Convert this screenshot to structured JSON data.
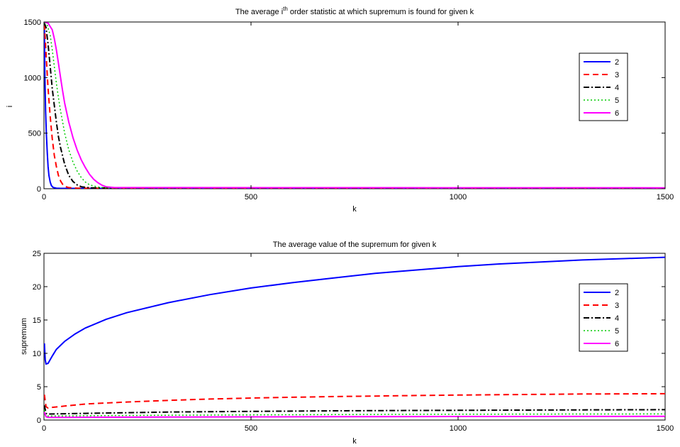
{
  "chart_data": [
    {
      "type": "line",
      "title_prefix": "The average i",
      "title_sup": "th",
      "title_suffix": " order statistic at which supremum is found for given k",
      "xlabel": "k",
      "ylabel": "i",
      "xlim": [
        0,
        1500
      ],
      "ylim": [
        0,
        1500
      ],
      "xticks": [
        0,
        500,
        1000,
        1500
      ],
      "yticks": [
        0,
        500,
        1000,
        1500
      ],
      "grid": false,
      "legend_position": "right",
      "series": [
        {
          "name": "2",
          "color": "#0000ff",
          "dash": "solid",
          "width": 2,
          "points": [
            [
              1,
              1450
            ],
            [
              2,
              1050
            ],
            [
              4,
              700
            ],
            [
              6,
              480
            ],
            [
              8,
              320
            ],
            [
              10,
              200
            ],
            [
              12,
              120
            ],
            [
              15,
              60
            ],
            [
              18,
              28
            ],
            [
              22,
              12
            ],
            [
              30,
              5
            ],
            [
              40,
              3
            ],
            [
              100,
              3
            ],
            [
              1500,
              3
            ]
          ]
        },
        {
          "name": "3",
          "color": "#ff0000",
          "dash": "dashed",
          "width": 2,
          "points": [
            [
              1,
              1480
            ],
            [
              3,
              1350
            ],
            [
              6,
              1150
            ],
            [
              10,
              900
            ],
            [
              15,
              650
            ],
            [
              20,
              450
            ],
            [
              25,
              300
            ],
            [
              30,
              200
            ],
            [
              35,
              120
            ],
            [
              40,
              70
            ],
            [
              45,
              40
            ],
            [
              50,
              22
            ],
            [
              60,
              10
            ],
            [
              80,
              5
            ],
            [
              1500,
              5
            ]
          ]
        },
        {
          "name": "4",
          "color": "#000000",
          "dash": "dashdot",
          "width": 2,
          "points": [
            [
              1,
              1490
            ],
            [
              5,
              1450
            ],
            [
              10,
              1300
            ],
            [
              15,
              1100
            ],
            [
              20,
              900
            ],
            [
              25,
              750
            ],
            [
              30,
              600
            ],
            [
              35,
              470
            ],
            [
              40,
              370
            ],
            [
              50,
              220
            ],
            [
              60,
              120
            ],
            [
              70,
              65
            ],
            [
              80,
              35
            ],
            [
              90,
              18
            ],
            [
              110,
              8
            ],
            [
              1500,
              6
            ]
          ]
        },
        {
          "name": "5",
          "color": "#00cc00",
          "dash": "dotted",
          "width": 1.5,
          "points": [
            [
              1,
              1495
            ],
            [
              8,
              1470
            ],
            [
              15,
              1380
            ],
            [
              20,
              1250
            ],
            [
              25,
              1100
            ],
            [
              30,
              950
            ],
            [
              35,
              820
            ],
            [
              40,
              700
            ],
            [
              50,
              500
            ],
            [
              60,
              350
            ],
            [
              70,
              240
            ],
            [
              80,
              160
            ],
            [
              90,
              100
            ],
            [
              100,
              60
            ],
            [
              110,
              35
            ],
            [
              130,
              15
            ],
            [
              150,
              8
            ],
            [
              1500,
              7
            ]
          ]
        },
        {
          "name": "6",
          "color": "#ff00ff",
          "dash": "solid",
          "width": 2,
          "points": [
            [
              1,
              1500
            ],
            [
              10,
              1490
            ],
            [
              20,
              1430
            ],
            [
              25,
              1350
            ],
            [
              30,
              1250
            ],
            [
              35,
              1130
            ],
            [
              40,
              1000
            ],
            [
              45,
              880
            ],
            [
              50,
              770
            ],
            [
              60,
              600
            ],
            [
              70,
              460
            ],
            [
              80,
              350
            ],
            [
              90,
              260
            ],
            [
              100,
              190
            ],
            [
              110,
              130
            ],
            [
              120,
              85
            ],
            [
              130,
              55
            ],
            [
              140,
              32
            ],
            [
              150,
              18
            ],
            [
              170,
              10
            ],
            [
              1500,
              8
            ]
          ]
        }
      ]
    },
    {
      "type": "line",
      "title": "The average value of the supremum for given k",
      "xlabel": "k",
      "ylabel": "supremum",
      "xlim": [
        0,
        1500
      ],
      "ylim": [
        0,
        25
      ],
      "xticks": [
        0,
        500,
        1000,
        1500
      ],
      "yticks": [
        0,
        5,
        10,
        15,
        20,
        25
      ],
      "grid": false,
      "legend_position": "right",
      "series": [
        {
          "name": "2",
          "color": "#0000ff",
          "dash": "solid",
          "width": 2,
          "points": [
            [
              1,
              11.5
            ],
            [
              3,
              9
            ],
            [
              5,
              8.4
            ],
            [
              10,
              8.5
            ],
            [
              20,
              9.6
            ],
            [
              30,
              10.6
            ],
            [
              50,
              11.8
            ],
            [
              75,
              12.9
            ],
            [
              100,
              13.8
            ],
            [
              150,
              15.1
            ],
            [
              200,
              16.1
            ],
            [
              300,
              17.6
            ],
            [
              400,
              18.8
            ],
            [
              500,
              19.8
            ],
            [
              600,
              20.6
            ],
            [
              700,
              21.3
            ],
            [
              800,
              22.0
            ],
            [
              900,
              22.5
            ],
            [
              1000,
              23.0
            ],
            [
              1100,
              23.4
            ],
            [
              1200,
              23.7
            ],
            [
              1300,
              24.0
            ],
            [
              1400,
              24.2
            ],
            [
              1500,
              24.4
            ]
          ]
        },
        {
          "name": "3",
          "color": "#ff0000",
          "dash": "dashed",
          "width": 2,
          "points": [
            [
              1,
              3.8
            ],
            [
              5,
              2.0
            ],
            [
              10,
              1.8
            ],
            [
              20,
              1.9
            ],
            [
              50,
              2.1
            ],
            [
              100,
              2.4
            ],
            [
              200,
              2.7
            ],
            [
              300,
              2.95
            ],
            [
              400,
              3.15
            ],
            [
              500,
              3.3
            ],
            [
              600,
              3.42
            ],
            [
              700,
              3.52
            ],
            [
              800,
              3.6
            ],
            [
              900,
              3.68
            ],
            [
              1000,
              3.75
            ],
            [
              1100,
              3.8
            ],
            [
              1200,
              3.85
            ],
            [
              1300,
              3.9
            ],
            [
              1400,
              3.93
            ],
            [
              1500,
              3.95
            ]
          ]
        },
        {
          "name": "4",
          "color": "#000000",
          "dash": "dashdot",
          "width": 2,
          "points": [
            [
              1,
              2.2
            ],
            [
              5,
              1.0
            ],
            [
              10,
              0.9
            ],
            [
              50,
              0.95
            ],
            [
              100,
              1.0
            ],
            [
              200,
              1.1
            ],
            [
              300,
              1.2
            ],
            [
              500,
              1.3
            ],
            [
              700,
              1.38
            ],
            [
              900,
              1.44
            ],
            [
              1100,
              1.48
            ],
            [
              1300,
              1.52
            ],
            [
              1500,
              1.55
            ]
          ]
        },
        {
          "name": "5",
          "color": "#00cc00",
          "dash": "dotted",
          "width": 1.5,
          "points": [
            [
              1,
              1.5
            ],
            [
              5,
              0.7
            ],
            [
              10,
              0.6
            ],
            [
              50,
              0.62
            ],
            [
              100,
              0.65
            ],
            [
              300,
              0.72
            ],
            [
              500,
              0.78
            ],
            [
              700,
              0.82
            ],
            [
              900,
              0.86
            ],
            [
              1100,
              0.88
            ],
            [
              1300,
              0.9
            ],
            [
              1500,
              0.92
            ]
          ]
        },
        {
          "name": "6",
          "color": "#ff00ff",
          "dash": "solid",
          "width": 2,
          "points": [
            [
              1,
              1.2
            ],
            [
              5,
              0.5
            ],
            [
              10,
              0.4
            ],
            [
              50,
              0.4
            ],
            [
              100,
              0.42
            ],
            [
              300,
              0.45
            ],
            [
              500,
              0.48
            ],
            [
              700,
              0.5
            ],
            [
              900,
              0.52
            ],
            [
              1100,
              0.53
            ],
            [
              1300,
              0.54
            ],
            [
              1500,
              0.55
            ]
          ]
        }
      ]
    }
  ]
}
